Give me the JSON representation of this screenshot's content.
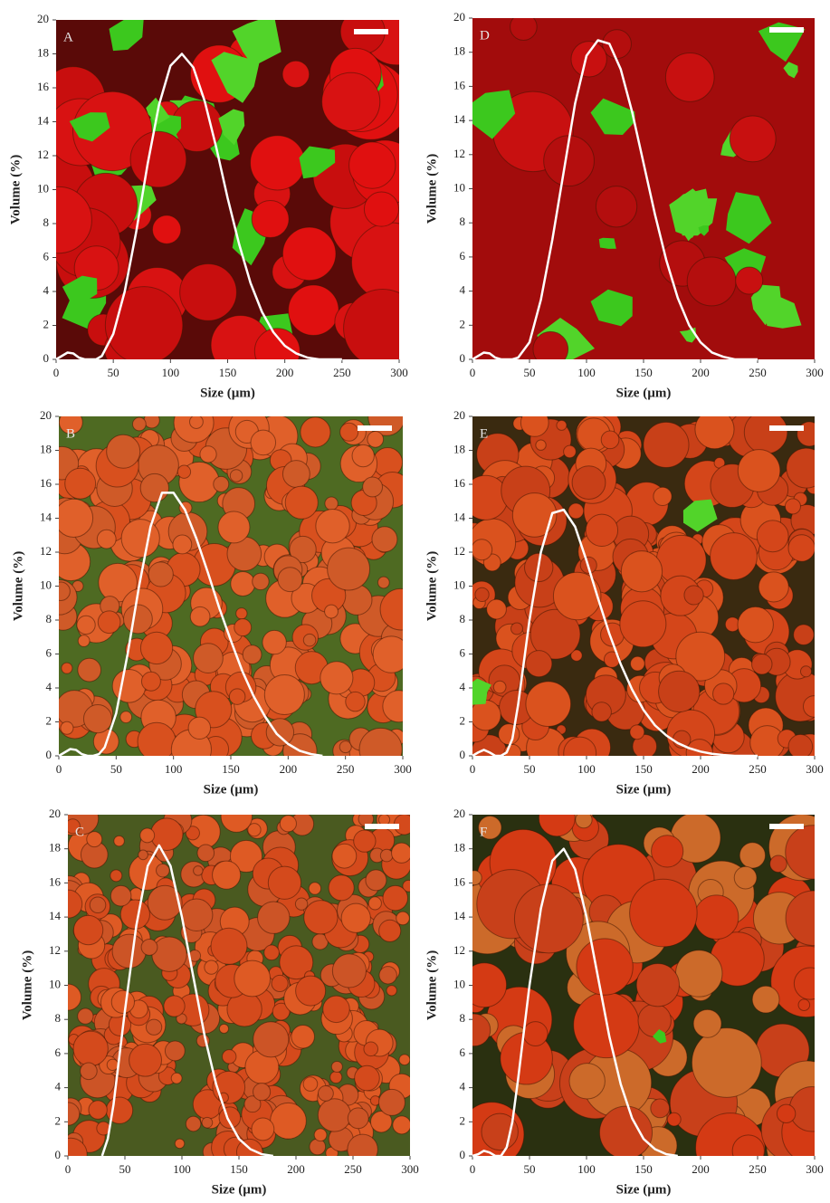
{
  "chart_data": [
    {
      "type": "line",
      "panel_label": "A",
      "xlabel": "Size (µm)",
      "ylabel": "Volume (%)",
      "xlim": [
        0,
        300
      ],
      "ylim": [
        0,
        20
      ],
      "xticks": [
        0,
        50,
        100,
        150,
        200,
        250,
        300
      ],
      "yticks": [
        0,
        2,
        4,
        6,
        8,
        10,
        12,
        14,
        16,
        18,
        20
      ],
      "color": "#ffffff",
      "x": [
        0,
        5,
        10,
        15,
        20,
        25,
        30,
        35,
        40,
        50,
        60,
        70,
        80,
        90,
        100,
        110,
        120,
        130,
        140,
        150,
        160,
        170,
        180,
        190,
        200,
        210,
        220,
        230,
        240,
        250
      ],
      "values": [
        0,
        0.2,
        0.4,
        0.35,
        0.1,
        0,
        0,
        0,
        0.2,
        1.5,
        4,
        7.5,
        11.5,
        15,
        17.3,
        18,
        17.2,
        15.2,
        12.5,
        9.5,
        6.8,
        4.5,
        2.8,
        1.6,
        0.8,
        0.35,
        0.1,
        0,
        0,
        0
      ]
    },
    {
      "type": "line",
      "panel_label": "B",
      "xlabel": "Size (µm)",
      "ylabel": "Volume (%)",
      "xlim": [
        0,
        300
      ],
      "ylim": [
        0,
        20
      ],
      "xticks": [
        0,
        50,
        100,
        150,
        200,
        250,
        300
      ],
      "yticks": [
        0,
        2,
        4,
        6,
        8,
        10,
        12,
        14,
        16,
        18,
        20
      ],
      "color": "#ffffff",
      "x": [
        0,
        5,
        10,
        15,
        20,
        25,
        30,
        35,
        40,
        50,
        60,
        70,
        80,
        90,
        100,
        110,
        120,
        130,
        140,
        150,
        160,
        170,
        180,
        190,
        200,
        210,
        220,
        230
      ],
      "values": [
        0,
        0.2,
        0.4,
        0.35,
        0.1,
        0,
        0,
        0.1,
        0.5,
        2.5,
        6,
        10,
        13.5,
        15.5,
        15.5,
        14.5,
        12.8,
        10.8,
        8.7,
        6.8,
        5,
        3.5,
        2.3,
        1.3,
        0.7,
        0.3,
        0.1,
        0
      ]
    },
    {
      "type": "line",
      "panel_label": "C",
      "xlabel": "Size (µm)",
      "ylabel": "Volume (%)",
      "xlim": [
        0,
        300
      ],
      "ylim": [
        0,
        20
      ],
      "xticks": [
        0,
        50,
        100,
        150,
        200,
        250,
        300
      ],
      "yticks": [
        0,
        2,
        4,
        6,
        8,
        10,
        12,
        14,
        16,
        18,
        20
      ],
      "color": "#ffffff",
      "x": [
        30,
        35,
        40,
        50,
        60,
        70,
        80,
        90,
        100,
        110,
        120,
        130,
        140,
        150,
        160,
        170,
        180
      ],
      "values": [
        0,
        1,
        3,
        8.5,
        13.5,
        17,
        18.2,
        17,
        14,
        10.5,
        7,
        4.2,
        2.2,
        1,
        0.4,
        0.1,
        0
      ]
    },
    {
      "type": "line",
      "panel_label": "D",
      "xlabel": "Size (µm)",
      "ylabel": "Volume (%)",
      "xlim": [
        0,
        300
      ],
      "ylim": [
        0,
        20
      ],
      "xticks": [
        0,
        50,
        100,
        150,
        200,
        250,
        300
      ],
      "yticks": [
        0,
        2,
        4,
        6,
        8,
        10,
        12,
        14,
        16,
        18,
        20
      ],
      "color": "#ffffff",
      "x": [
        0,
        5,
        10,
        15,
        20,
        25,
        30,
        35,
        40,
        50,
        60,
        70,
        80,
        90,
        100,
        110,
        120,
        130,
        140,
        150,
        160,
        170,
        180,
        190,
        200,
        210,
        220,
        230,
        240,
        250
      ],
      "values": [
        0,
        0.2,
        0.4,
        0.35,
        0.1,
        0,
        0,
        0,
        0.1,
        1,
        3.5,
        7,
        11,
        15,
        17.8,
        18.7,
        18.5,
        17,
        14.5,
        11.5,
        8.5,
        5.8,
        3.6,
        2,
        1,
        0.4,
        0.15,
        0,
        0,
        0
      ]
    },
    {
      "type": "line",
      "panel_label": "E",
      "xlabel": "Size (µm)",
      "ylabel": "Volume (%)",
      "xlim": [
        0,
        300
      ],
      "ylim": [
        0,
        20
      ],
      "xticks": [
        0,
        50,
        100,
        150,
        200,
        250,
        300
      ],
      "yticks": [
        0,
        2,
        4,
        6,
        8,
        10,
        12,
        14,
        16,
        18,
        20
      ],
      "color": "#ffffff",
      "x": [
        0,
        5,
        10,
        15,
        20,
        25,
        30,
        35,
        40,
        50,
        60,
        70,
        80,
        90,
        100,
        110,
        120,
        130,
        140,
        150,
        160,
        170,
        180,
        190,
        200,
        210,
        220,
        230,
        240,
        250
      ],
      "values": [
        0,
        0.2,
        0.35,
        0.2,
        0,
        0,
        0.2,
        1,
        3,
        8,
        12,
        14.3,
        14.5,
        13.5,
        11.5,
        9.3,
        7.2,
        5.4,
        3.9,
        2.7,
        1.8,
        1.2,
        0.75,
        0.45,
        0.25,
        0.12,
        0.05,
        0,
        0,
        0
      ]
    },
    {
      "type": "line",
      "panel_label": "F",
      "xlabel": "Size (µm)",
      "ylabel": "Volume (%)",
      "xlim": [
        0,
        300
      ],
      "ylim": [
        0,
        20
      ],
      "xticks": [
        0,
        50,
        100,
        150,
        200,
        250,
        300
      ],
      "yticks": [
        0,
        2,
        4,
        6,
        8,
        10,
        12,
        14,
        16,
        18,
        20
      ],
      "color": "#ffffff",
      "x": [
        0,
        5,
        10,
        15,
        20,
        25,
        30,
        35,
        40,
        50,
        60,
        70,
        80,
        90,
        100,
        110,
        120,
        130,
        140,
        150,
        160,
        170,
        180
      ],
      "values": [
        0,
        0.1,
        0.3,
        0.2,
        0,
        0,
        0.5,
        2,
        4.5,
        10,
        14.5,
        17.3,
        18,
        16.8,
        14,
        10.5,
        7,
        4.2,
        2.2,
        1,
        0.4,
        0.1,
        0
      ]
    }
  ]
}
